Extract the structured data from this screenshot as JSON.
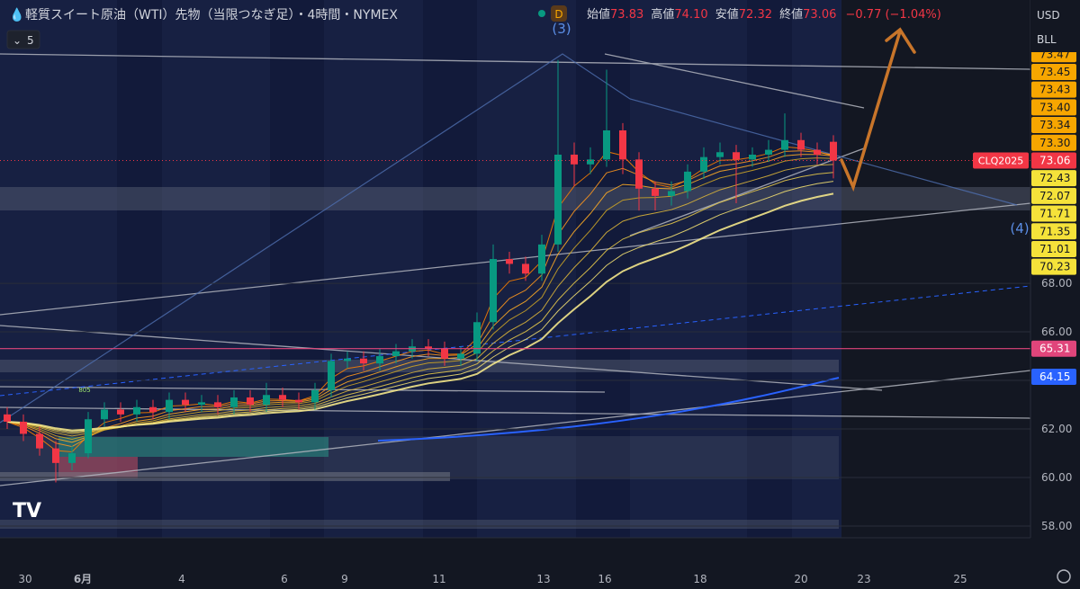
{
  "header": {
    "symbol": "軽質スイート原油（WTI）先物（当限つなぎ足）・4時間・NYMEX",
    "badge": "D",
    "open_label": "始値",
    "open": "73.83",
    "high_label": "高値",
    "high": "74.10",
    "low_label": "安値",
    "low": "72.32",
    "close_label": "終値",
    "close": "73.06",
    "change": "−0.77 (−1.04%)"
  },
  "toolbar": {
    "interval": "5",
    "currency": "USD",
    "unit": "BLL"
  },
  "chart_data": {
    "type": "candlestick",
    "open": [
      62.6,
      62.3,
      61.8,
      61.2,
      60.6,
      61.0,
      62.4,
      62.8,
      62.6,
      62.9,
      62.7,
      63.2,
      63.0,
      63.1,
      62.9,
      63.3,
      63.0,
      63.4,
      63.2,
      63.1,
      63.6,
      64.8,
      64.9,
      64.7,
      65.0,
      65.2,
      65.4,
      65.3,
      64.9,
      65.1,
      66.4,
      69.0,
      68.8,
      68.4,
      69.6,
      73.3,
      72.9,
      73.1,
      74.3,
      73.1,
      71.9,
      71.6,
      71.8,
      72.6,
      73.2,
      73.4,
      73.1,
      73.3,
      73.5,
      73.9,
      73.5,
      73.83
    ],
    "high": [
      62.9,
      62.6,
      62.1,
      61.5,
      61.3,
      62.7,
      63.1,
      63.1,
      63.2,
      63.2,
      63.5,
      63.5,
      63.4,
      63.4,
      63.6,
      63.6,
      63.9,
      63.7,
      63.5,
      63.9,
      65.1,
      65.2,
      65.2,
      65.3,
      65.5,
      65.7,
      65.7,
      65.6,
      65.4,
      66.8,
      69.6,
      69.3,
      69.1,
      70.0,
      77.2,
      73.8,
      73.6,
      76.8,
      74.6,
      73.4,
      72.2,
      72.2,
      72.9,
      73.6,
      73.8,
      73.7,
      73.6,
      73.9,
      75.0,
      74.2,
      73.8,
      74.1
    ],
    "low": [
      62.0,
      61.5,
      60.9,
      59.8,
      60.3,
      60.8,
      62.1,
      62.3,
      62.3,
      62.4,
      62.4,
      62.7,
      62.7,
      62.6,
      62.6,
      62.7,
      62.7,
      62.9,
      62.8,
      62.8,
      63.3,
      64.5,
      64.4,
      64.4,
      64.7,
      64.9,
      65.0,
      64.6,
      64.6,
      64.8,
      66.1,
      68.4,
      68.1,
      68.1,
      69.3,
      72.0,
      72.5,
      72.8,
      72.5,
      71.0,
      71.0,
      71.2,
      71.5,
      72.3,
      72.9,
      71.3,
      72.8,
      73.0,
      73.2,
      73.2,
      72.9,
      72.32
    ],
    "close": [
      62.3,
      61.8,
      61.2,
      60.6,
      61.0,
      62.4,
      62.8,
      62.6,
      62.9,
      62.7,
      63.2,
      63.0,
      63.1,
      62.9,
      63.3,
      63.0,
      63.4,
      63.2,
      63.1,
      63.6,
      64.8,
      64.9,
      64.7,
      65.0,
      65.2,
      65.4,
      65.3,
      64.9,
      65.1,
      66.4,
      69.0,
      68.8,
      68.4,
      69.6,
      73.3,
      72.9,
      73.1,
      74.3,
      73.1,
      71.9,
      71.6,
      71.8,
      72.6,
      73.2,
      73.4,
      73.1,
      73.3,
      73.5,
      73.9,
      73.5,
      73.3,
      73.06
    ],
    "up_color": "#089981",
    "down_color": "#f23645",
    "ylim": [
      57.52,
      79.67
    ],
    "yticks": [
      {
        "value": 58,
        "label": "58.00"
      },
      {
        "value": 60,
        "label": "60.00"
      },
      {
        "value": 62,
        "label": "62.00"
      },
      {
        "value": 64,
        "label": "64.00"
      },
      {
        "value": 66,
        "label": "66.00"
      },
      {
        "value": 68,
        "label": "68.00"
      }
    ],
    "x_labels": [
      "30",
      "6月",
      "4",
      "6",
      "9",
      "11",
      "13",
      "16",
      "18",
      "20",
      "23",
      "25"
    ],
    "symbol_tag": "CLQ2025",
    "stack_above": [
      {
        "value": 73.47,
        "label": "73.47"
      },
      {
        "value": 73.45,
        "label": "73.45"
      },
      {
        "value": 73.43,
        "label": "73.43"
      },
      {
        "value": 73.4,
        "label": "73.40"
      },
      {
        "value": 73.34,
        "label": "73.34"
      },
      {
        "value": 73.3,
        "label": "73.30"
      }
    ],
    "stack_above_color": "#f7a600",
    "stack_below": [
      {
        "value": 72.43,
        "label": "72.43"
      },
      {
        "value": 72.07,
        "label": "72.07"
      },
      {
        "value": 71.71,
        "label": "71.71"
      },
      {
        "value": 71.35,
        "label": "71.35"
      },
      {
        "value": 71.01,
        "label": "71.01"
      },
      {
        "value": 70.23,
        "label": "70.23"
      }
    ],
    "stack_below_color": "#f5e23a",
    "levels": [
      {
        "value": 65.31,
        "label": "65.31",
        "color": "#e0457b"
      },
      {
        "value": 64.15,
        "label": "64.15",
        "color": "#2962ff"
      }
    ],
    "annotations": [
      "(3)",
      "(4)",
      "805"
    ]
  }
}
